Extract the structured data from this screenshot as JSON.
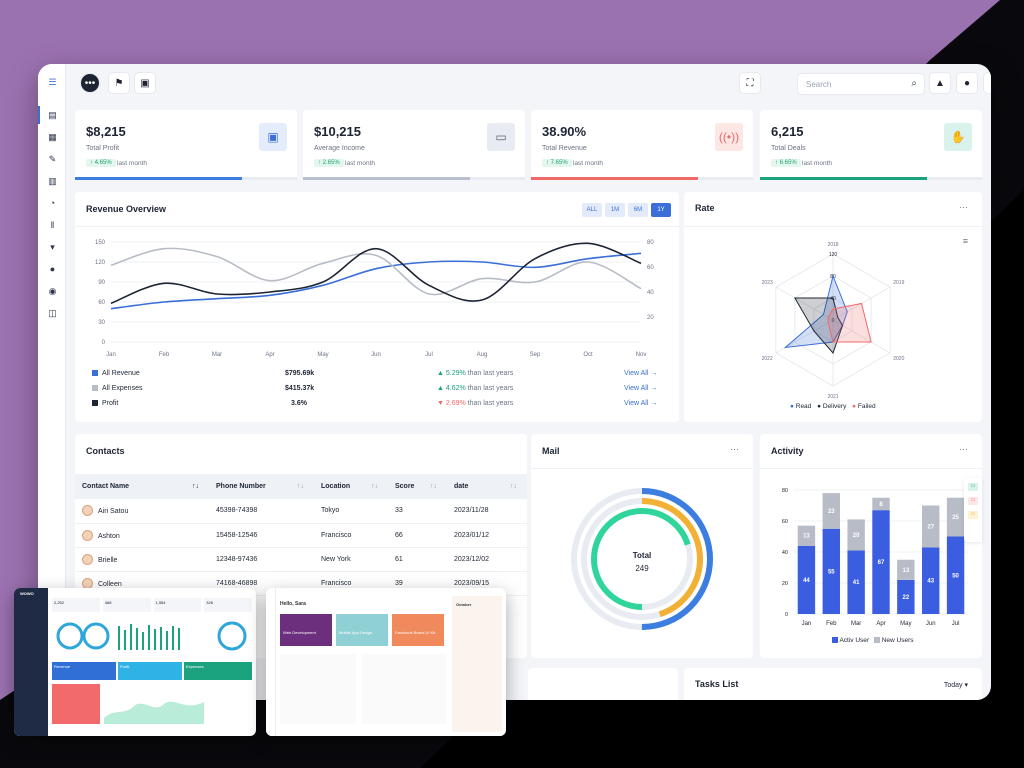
{
  "topbar": {
    "search_placeholder": "Search",
    "icons": [
      "menu-icon",
      "chat-icon",
      "flag-icon",
      "clipboard-icon",
      "fullscreen-icon",
      "search-icon",
      "bell-icon",
      "user-icon",
      "settings-icon"
    ]
  },
  "sidebar": {
    "icons": [
      "layout-icon",
      "grid-icon",
      "edit-icon",
      "document-icon",
      "pie-icon",
      "library-icon",
      "bag-icon",
      "user-icon",
      "globe-icon",
      "map-icon"
    ]
  },
  "stats": [
    {
      "value": "$8,215",
      "label": "Total Profit",
      "change": "↑ 4.65%",
      "period": "last month",
      "accent": "#3b7ee0",
      "icon_bg": "#e5ecfb",
      "icon": "briefcase-icon",
      "progress": 0.75
    },
    {
      "value": "$10,215",
      "label": "Average Income",
      "change": "↑ 2.65%",
      "period": "last month",
      "accent": "#b8c0cf",
      "icon_bg": "#e8ecf2",
      "icon": "folder-icon",
      "progress": 0.75
    },
    {
      "value": "38.90%",
      "label": "Total Revenue",
      "change": "↑ 7.65%",
      "period": "last month",
      "accent": "#ef6a67",
      "icon_bg": "#fde7e5",
      "icon": "broadcast-icon",
      "progress": 0.75
    },
    {
      "value": "6,215",
      "label": "Total Deals",
      "change": "↑ 6.65%",
      "period": "last month",
      "accent": "#1aa37e",
      "icon_bg": "#d9f3ec",
      "icon": "handshake-icon",
      "progress": 0.75
    }
  ],
  "revenue": {
    "title": "Revenue Overview",
    "ranges": [
      "ALL",
      "1M",
      "6M",
      "1Y"
    ],
    "active_range": "1Y",
    "rows": [
      {
        "name": "All Revenue",
        "value": "$795.69k",
        "change": "5.29%",
        "suffix": "than last years",
        "link": "View All",
        "color": "#3b6fd8",
        "up": true
      },
      {
        "name": "All Expenses",
        "value": "$415.37k",
        "change": "4.62%",
        "suffix": "than last years",
        "link": "View All",
        "color": "#b8bcc6",
        "up": true
      },
      {
        "name": "Profit",
        "value": "3.6%",
        "change": "2.69%",
        "suffix": "than last years",
        "link": "View All",
        "color": "#1d2433",
        "up": false
      }
    ]
  },
  "chart_data": [
    {
      "type": "line",
      "title": "Revenue Overview",
      "categories": [
        "Jan",
        "Feb",
        "Mar",
        "Apr",
        "May",
        "Jun",
        "Jul",
        "Aug",
        "Sep",
        "Oct",
        "Nov"
      ],
      "y_left": {
        "ticks": [
          0,
          30,
          60,
          90,
          120,
          150
        ],
        "ylim": [
          0,
          150
        ]
      },
      "y_right": {
        "ticks": [
          20,
          40,
          60,
          80
        ],
        "ylim": [
          0,
          80
        ]
      },
      "series": [
        {
          "name": "All Revenue",
          "values": [
            50,
            60,
            65,
            70,
            85,
            110,
            120,
            120,
            112,
            125,
            133
          ],
          "color": "#3b6fd8"
        },
        {
          "name": "All Expenses",
          "values": [
            115,
            140,
            128,
            92,
            118,
            130,
            72,
            95,
            90,
            120,
            80
          ],
          "color": "#b8bcc6"
        },
        {
          "name": "Profit",
          "values": [
            58,
            88,
            72,
            75,
            90,
            140,
            85,
            63,
            125,
            148,
            118
          ],
          "color": "#1d2433"
        }
      ]
    },
    {
      "type": "radar",
      "title": "Rate",
      "axes": [
        "2018",
        "2019",
        "2020",
        "2021",
        "2022",
        "2023"
      ],
      "ticks": [
        0,
        40,
        80,
        120
      ],
      "rlim": [
        0,
        120
      ],
      "series": [
        {
          "name": "Read",
          "values": [
            80,
            30,
            20,
            40,
            100,
            20
          ],
          "color": "#3b6fd8"
        },
        {
          "name": "Delivery",
          "values": [
            40,
            10,
            20,
            60,
            40,
            80
          ],
          "color": "#1d2433"
        },
        {
          "name": "Failed",
          "values": [
            20,
            60,
            80,
            40,
            10,
            10
          ],
          "color": "#ef6a67"
        }
      ]
    },
    {
      "type": "donut",
      "title": "Mail",
      "center_label": "Total",
      "center_value": "249",
      "series": [
        {
          "values": [
            0.5
          ],
          "color": "#3b7ee0"
        },
        {
          "values": [
            0.45
          ],
          "color": "#f2b134"
        },
        {
          "values": [
            0.7
          ],
          "color": "#2fd59a"
        }
      ]
    },
    {
      "type": "bar",
      "title": "Activity",
      "categories": [
        "Jan",
        "Feb",
        "Mar",
        "Apr",
        "May",
        "Jun",
        "Jul"
      ],
      "ylim": [
        0,
        80
      ],
      "yticks": [
        0,
        20,
        40,
        60,
        80
      ],
      "stacked": true,
      "series": [
        {
          "name": "Activ User",
          "values": [
            44,
            55,
            41,
            67,
            22,
            43,
            50
          ],
          "color": "#3b5ee0"
        },
        {
          "name": "New Users",
          "values": [
            13,
            23,
            20,
            8,
            13,
            27,
            25
          ],
          "color": "#b8bcc6"
        }
      ]
    }
  ],
  "rate": {
    "title": "Rate",
    "legend": [
      "Read",
      "Delivery",
      "Failed"
    ]
  },
  "mail": {
    "title": "Mail"
  },
  "activity": {
    "title": "Activity",
    "legend": [
      "Activ User",
      "New Users"
    ]
  },
  "contacts": {
    "title": "Contacts",
    "columns": [
      "Contact Name",
      "Phone Number",
      "Location",
      "Score",
      "date"
    ],
    "rows": [
      [
        "Airi Satou",
        "45398-74398",
        "Tokyo",
        "33",
        "2023/11/28"
      ],
      [
        "Ashton",
        "15458-12546",
        "Francisco",
        "66",
        "2023/01/12"
      ],
      [
        "Brielle",
        "12348-97436",
        "New York",
        "61",
        "2023/12/02"
      ],
      [
        "Colleen",
        "74168-46898",
        "Francisco",
        "39",
        "2023/09/15"
      ]
    ]
  },
  "tasks": {
    "title": "Tasks List",
    "filter": "Today"
  },
  "overlays": {
    "left": {
      "brand": "WOWO",
      "kpis": [
        "2,252",
        "468",
        "1,554",
        "326"
      ],
      "cards": [
        "Revenue",
        "Profit",
        "Expenses"
      ]
    },
    "right": {
      "greeting": "Hello, Sara",
      "cards": [
        "Web Development",
        "Mobile App Design",
        "Facebook Brand UI Kit"
      ],
      "calendar": "October"
    }
  }
}
